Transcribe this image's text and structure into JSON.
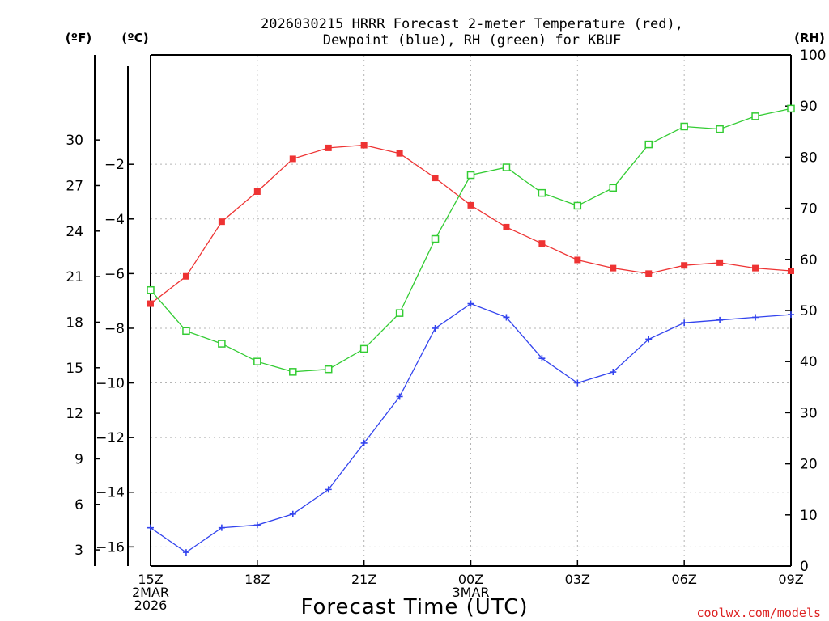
{
  "chart_data": {
    "type": "line",
    "title_line1": "2026030215 HRRR Forecast 2-meter Temperature (red),",
    "title_line2": "Dewpoint (blue), RH (green) for KBUF",
    "xlabel": "Forecast Time (UTC)",
    "unit_labels": {
      "fahrenheit": "(ºF)",
      "celsius": "(ºC)",
      "rh": "(RH)"
    },
    "watermark": "coolwx.com/models",
    "x_hours": [
      0,
      1,
      2,
      3,
      4,
      5,
      6,
      7,
      8,
      9,
      10,
      11,
      12,
      13,
      14,
      15,
      16,
      17,
      18
    ],
    "x_ticks": [
      {
        "hour": 0,
        "lines": [
          "15Z",
          "2MAR",
          "2026"
        ]
      },
      {
        "hour": 3,
        "lines": [
          "18Z"
        ]
      },
      {
        "hour": 6,
        "lines": [
          "21Z"
        ]
      },
      {
        "hour": 9,
        "lines": [
          "00Z",
          "3MAR"
        ]
      },
      {
        "hour": 12,
        "lines": [
          "03Z"
        ]
      },
      {
        "hour": 15,
        "lines": [
          "06Z"
        ]
      },
      {
        "hour": 18,
        "lines": [
          "09Z"
        ]
      }
    ],
    "celsius_axis": {
      "min": -16.7,
      "max": 2.0,
      "ticks": [
        "-16",
        "-14",
        "-12",
        "-10",
        "-8",
        "-6",
        "-4",
        "-2"
      ]
    },
    "fahrenheit_axis": {
      "min": 1.94,
      "max": 35.6,
      "ticks": [
        "3",
        "6",
        "9",
        "12",
        "15",
        "18",
        "21",
        "24",
        "27",
        "30"
      ]
    },
    "rh_axis": {
      "min": 0,
      "max": 100,
      "ticks": [
        "0",
        "10",
        "20",
        "30",
        "40",
        "50",
        "60",
        "70",
        "80",
        "90",
        "100"
      ]
    },
    "series": [
      {
        "name": "Temperature",
        "units": "C",
        "color": "#ee3333",
        "marker": "filled-square",
        "values": [
          -7.1,
          -6.1,
          -4.1,
          -3.0,
          -1.8,
          -1.4,
          -1.3,
          -1.6,
          -2.5,
          -3.5,
          -4.3,
          -4.9,
          -5.5,
          -5.8,
          -6.0,
          -5.7,
          -5.6,
          -5.8,
          -5.9
        ]
      },
      {
        "name": "Dewpoint",
        "units": "C",
        "color": "#3344ee",
        "marker": "plus",
        "values": [
          -15.3,
          -16.2,
          -15.3,
          -15.2,
          -14.8,
          -13.9,
          -12.2,
          -10.5,
          -8.0,
          -7.1,
          -7.6,
          -9.1,
          -10.0,
          -9.6,
          -8.4,
          -7.8,
          -7.7,
          -7.6,
          -7.5
        ]
      },
      {
        "name": "RH",
        "units": "%",
        "color": "#33cc33",
        "marker": "open-square",
        "values": [
          54,
          46,
          43.5,
          40,
          38,
          38.5,
          42.5,
          49.5,
          64,
          76.5,
          78,
          73,
          70.5,
          74,
          82.5,
          86,
          85.5,
          88,
          89.5
        ]
      }
    ]
  }
}
